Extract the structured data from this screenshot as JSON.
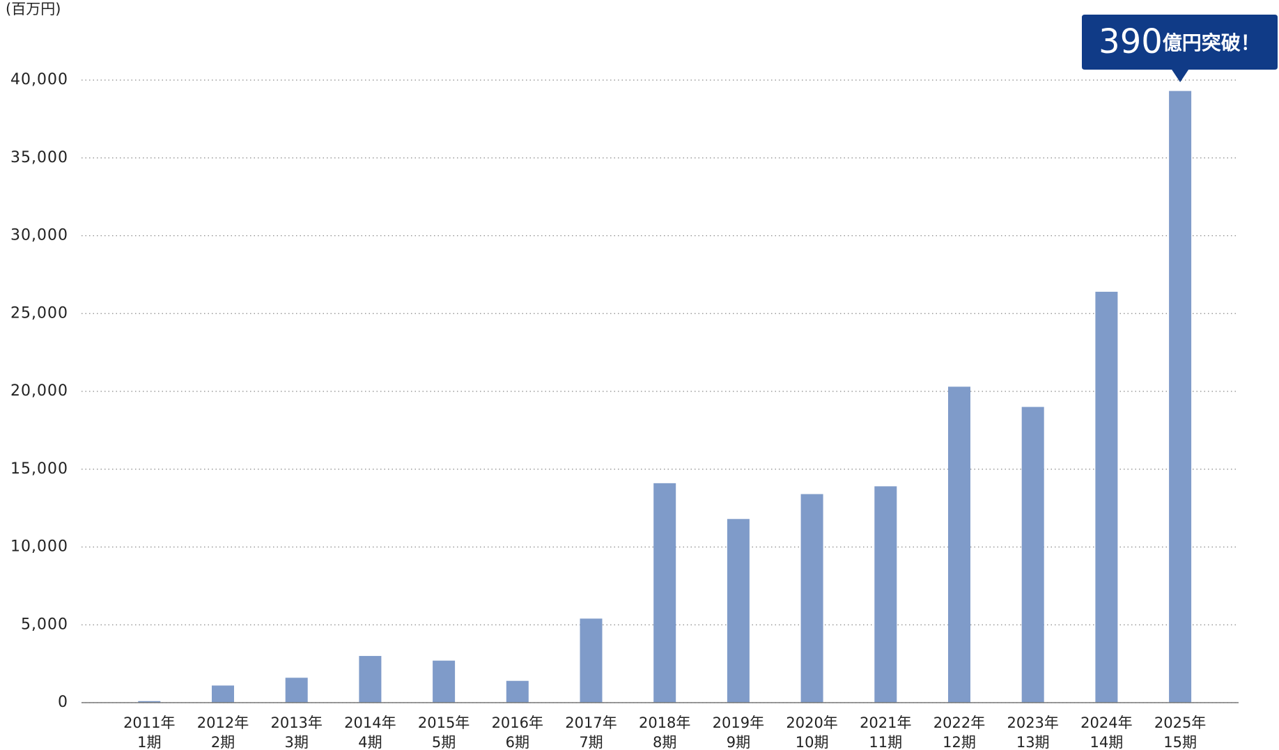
{
  "chart_data": {
    "type": "bar",
    "y_unit": "(百万円)",
    "categories": [
      [
        "2011年",
        "1期"
      ],
      [
        "2012年",
        "2期"
      ],
      [
        "2013年",
        "3期"
      ],
      [
        "2014年",
        "4期"
      ],
      [
        "2015年",
        "5期"
      ],
      [
        "2016年",
        "6期"
      ],
      [
        "2017年",
        "7期"
      ],
      [
        "2018年",
        "8期"
      ],
      [
        "2019年",
        "9期"
      ],
      [
        "2020年",
        "10期"
      ],
      [
        "2021年",
        "11期"
      ],
      [
        "2022年",
        "12期"
      ],
      [
        "2023年",
        "13期"
      ],
      [
        "2024年",
        "14期"
      ],
      [
        "2025年",
        "15期"
      ]
    ],
    "values": [
      100,
      1100,
      1600,
      3000,
      2700,
      1400,
      5400,
      14100,
      11800,
      13400,
      13900,
      20300,
      19000,
      26400,
      39300
    ],
    "color": "#7f9bc9",
    "ylim": [
      0,
      40000
    ],
    "yticks": [
      0,
      {
        "value": 5000,
        "label": "5,000"
      },
      {
        "value": 10000,
        "label": "10,000"
      },
      {
        "value": 15000,
        "label": "15,000"
      },
      {
        "value": 20000,
        "label": "20,000"
      },
      {
        "value": 25000,
        "label": "25,000"
      },
      {
        "value": 30000,
        "label": "30,000"
      },
      {
        "value": 35000,
        "label": "35,000"
      },
      {
        "value": 40000,
        "label": "40,000"
      }
    ],
    "grid": true,
    "annotation": {
      "number": "390",
      "text": "億円突破！",
      "color": "#103b87"
    }
  }
}
